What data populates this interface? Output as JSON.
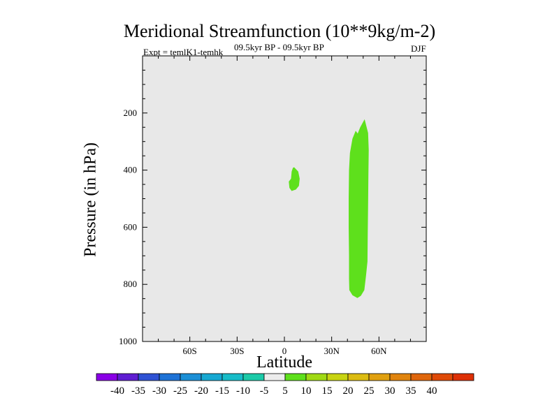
{
  "chart_data": {
    "type": "contour",
    "title": "Meridional Streamfunction (10**9kg/m-2)",
    "subtitle_left": "Expt = temlK1-temhk",
    "subtitle_center": "09.5kyr BP - 09.5kyr BP",
    "subtitle_right": "DJF",
    "xlabel": "Latitude",
    "ylabel": "Pressure (in hPa)",
    "xlim": [
      -90,
      90
    ],
    "ylim": [
      1000,
      0
    ],
    "x_ticks": [
      {
        "value": -60,
        "label": "60S"
      },
      {
        "value": -30,
        "label": "30S"
      },
      {
        "value": 0,
        "label": "0"
      },
      {
        "value": 30,
        "label": "30N"
      },
      {
        "value": 60,
        "label": "60N"
      }
    ],
    "y_ticks": [
      {
        "value": 200,
        "label": "200"
      },
      {
        "value": 400,
        "label": "400"
      },
      {
        "value": 600,
        "label": "600"
      },
      {
        "value": 800,
        "label": "800"
      },
      {
        "value": 1000,
        "label": "1000"
      }
    ],
    "background_color": "#e8e8e8",
    "filled_regions": [
      {
        "name": "small-blob-near-equator",
        "range": [
          5,
          10
        ],
        "color": "#5ee01c",
        "points": [
          [
            6.2,
            390
          ],
          [
            8.8,
            405
          ],
          [
            9.7,
            430
          ],
          [
            9.2,
            455
          ],
          [
            7.3,
            468
          ],
          [
            4.6,
            473
          ],
          [
            3.2,
            462
          ],
          [
            2.8,
            440
          ],
          [
            4.2,
            430
          ],
          [
            4.6,
            405
          ],
          [
            5.4,
            392
          ]
        ]
      },
      {
        "name": "tall-band-northern-midlatitudes",
        "range": [
          5,
          10
        ],
        "color": "#5ee01c",
        "points": [
          [
            50.9,
            222
          ],
          [
            53.1,
            270
          ],
          [
            53.5,
            330
          ],
          [
            53.3,
            420
          ],
          [
            53.1,
            520
          ],
          [
            52.9,
            620
          ],
          [
            52.7,
            720
          ],
          [
            51.8,
            770
          ],
          [
            50.7,
            820
          ],
          [
            48.5,
            840
          ],
          [
            46.3,
            848
          ],
          [
            43.2,
            838
          ],
          [
            41.2,
            820
          ],
          [
            41.0,
            780
          ],
          [
            41.0,
            700
          ],
          [
            40.8,
            600
          ],
          [
            40.8,
            500
          ],
          [
            41.0,
            400
          ],
          [
            41.6,
            340
          ],
          [
            43.2,
            290
          ],
          [
            45.2,
            262
          ],
          [
            46.5,
            272
          ],
          [
            48.1,
            250
          ]
        ]
      }
    ],
    "colorbar": {
      "labels": [
        "-40",
        "-35",
        "-30",
        "-25",
        "-20",
        "-15",
        "-10",
        "-5",
        "5",
        "10",
        "15",
        "20",
        "25",
        "30",
        "35",
        "40"
      ],
      "colors": [
        "#8a00e6",
        "#5f1ed2",
        "#2f52d4",
        "#1e72d6",
        "#1c8fd6",
        "#17a8d2",
        "#18bcc8",
        "#1ccaa8",
        "#ececec",
        "#5ee01c",
        "#a0da14",
        "#c8d412",
        "#dcbc12",
        "#e0a010",
        "#e0840e",
        "#df660c",
        "#df4a08",
        "#dd3006"
      ]
    }
  }
}
